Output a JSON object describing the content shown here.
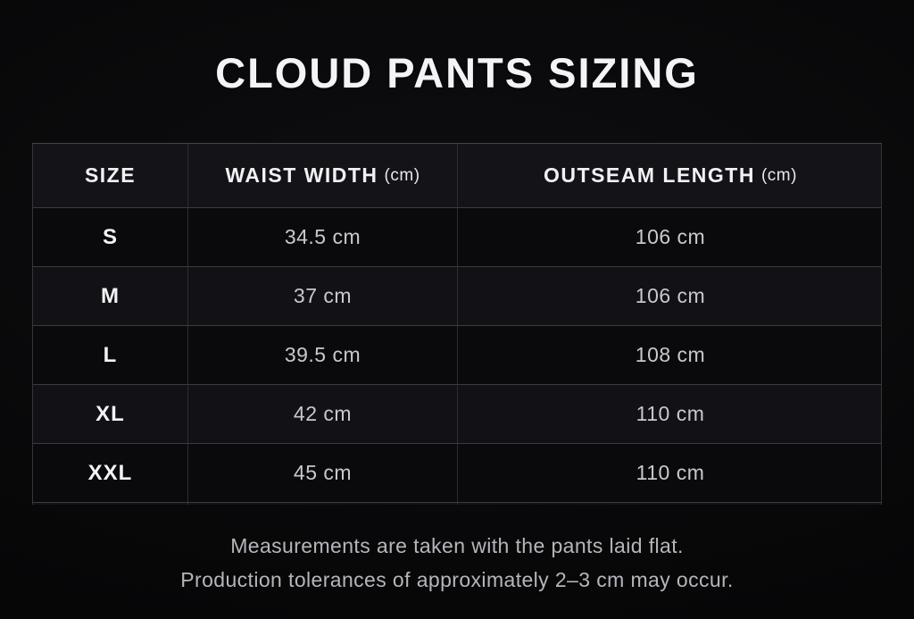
{
  "title": "CLOUD PANTS SIZING",
  "table": {
    "columns": [
      {
        "label": "SIZE",
        "unit": ""
      },
      {
        "label": "WAIST WIDTH",
        "unit": "(cm)"
      },
      {
        "label": "OUTSEAM LENGTH",
        "unit": "(cm)"
      }
    ],
    "rows": [
      {
        "size": "S",
        "waist": "34.5 cm",
        "outseam": "106 cm"
      },
      {
        "size": "M",
        "waist": "37 cm",
        "outseam": "106 cm"
      },
      {
        "size": "L",
        "waist": "39.5 cm",
        "outseam": "108 cm"
      },
      {
        "size": "XL",
        "waist": "42 cm",
        "outseam": "110 cm"
      },
      {
        "size": "XXL",
        "waist": "45 cm",
        "outseam": "110 cm"
      }
    ]
  },
  "footer": {
    "line1": "Measurements are taken with the pants laid flat.",
    "line2": "Production tolerances of approximately 2–3 cm may occur."
  },
  "colors": {
    "background": "#070708",
    "header_row_bg": "#141418",
    "row_dark_bg": "#0a0a0c",
    "row_light_bg": "#121216",
    "border": "#3a3a41",
    "title_text": "#f4f4f6",
    "value_text": "#c8c9cd",
    "footer_text": "#b5b6bb"
  },
  "chart_data": {
    "type": "table",
    "title": "CLOUD PANTS SIZING",
    "columns": [
      "SIZE",
      "WAIST WIDTH (cm)",
      "OUTSEAM LENGTH (cm)"
    ],
    "rows": [
      [
        "S",
        34.5,
        106
      ],
      [
        "M",
        37,
        106
      ],
      [
        "L",
        39.5,
        108
      ],
      [
        "XL",
        42,
        110
      ],
      [
        "XXL",
        45,
        110
      ]
    ],
    "units": "cm",
    "notes": [
      "Measurements are taken with the pants laid flat.",
      "Production tolerances of approximately 2–3 cm may occur."
    ]
  }
}
